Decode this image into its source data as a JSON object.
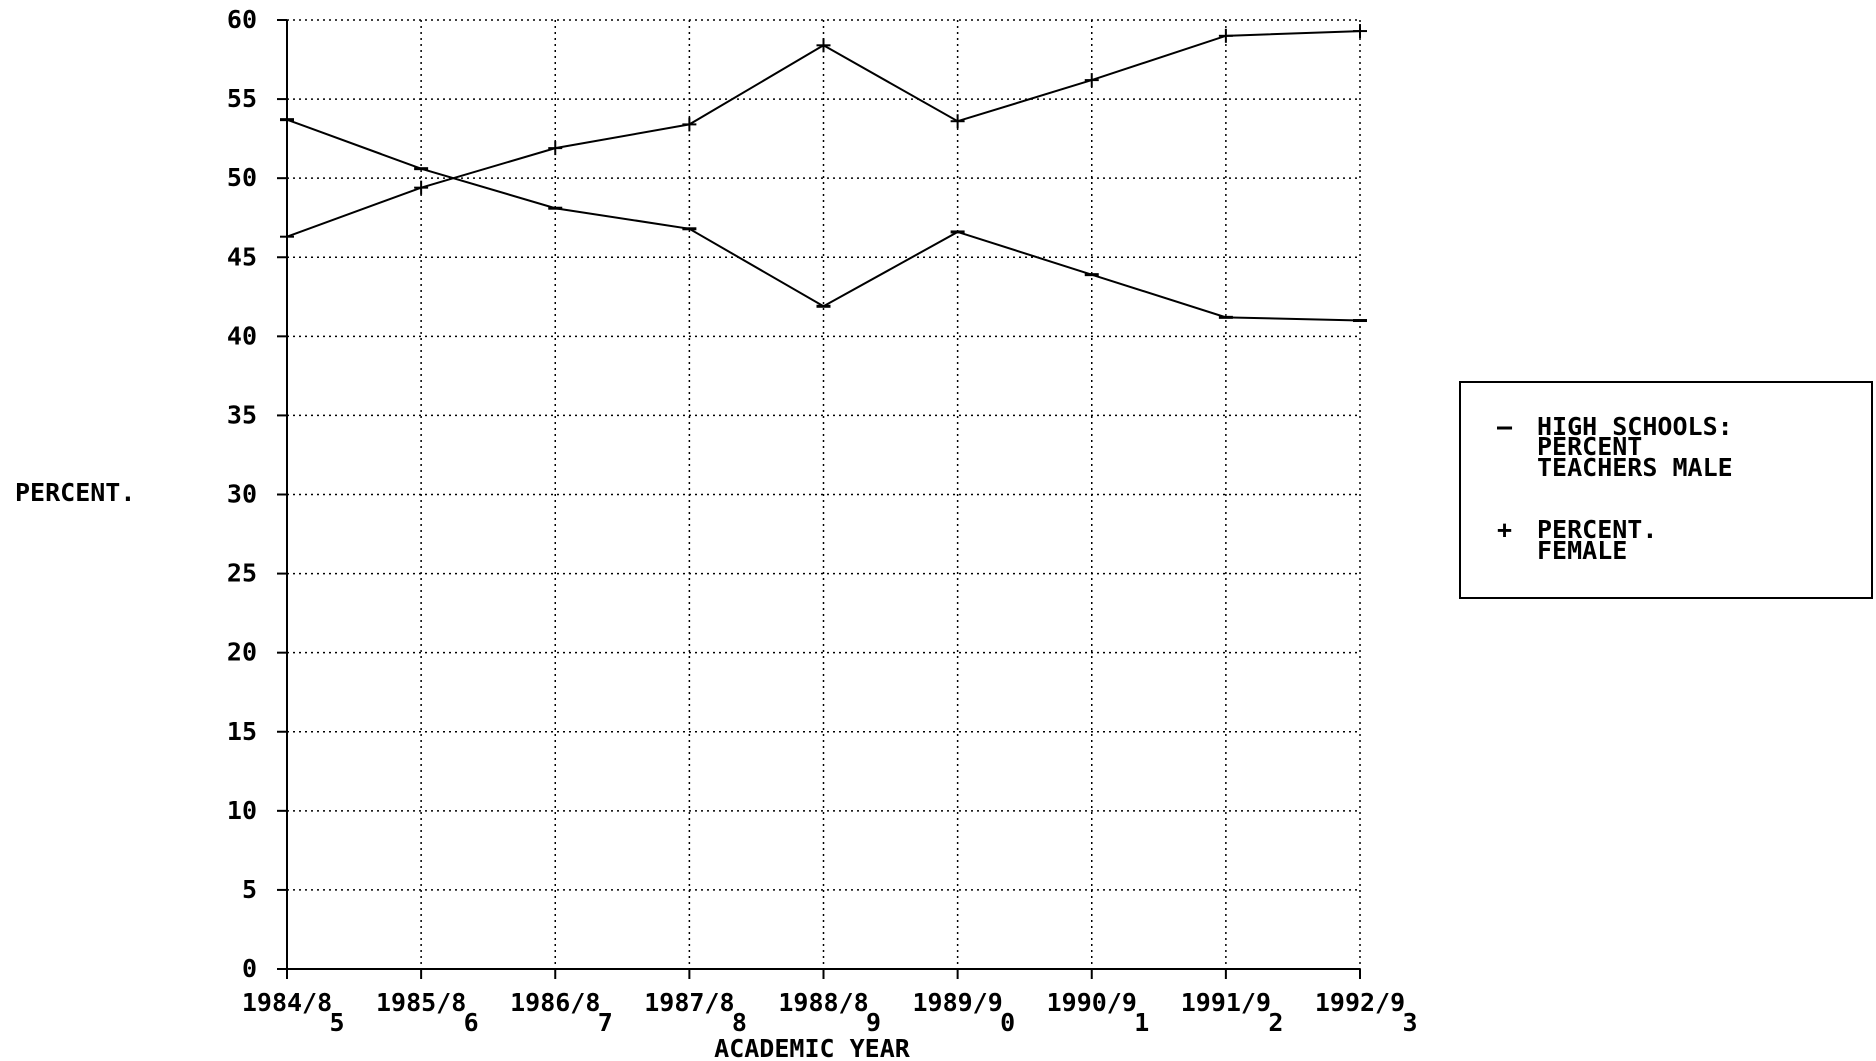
{
  "chart_data": {
    "type": "line",
    "title": "",
    "xlabel": "ACADEMIC YEAR",
    "ylabel": "PERCENT.",
    "ylim": [
      0,
      60
    ],
    "y_ticks": [
      0,
      5,
      10,
      15,
      20,
      25,
      30,
      35,
      40,
      45,
      50,
      55,
      60
    ],
    "y_tick_labels": [
      "0",
      "5",
      "10",
      "15",
      "20",
      "25",
      "30",
      "35",
      "40",
      "45",
      "50",
      "55",
      "60"
    ],
    "grid": true,
    "grid_style": "dotted",
    "legend_position": "right",
    "categories": [
      {
        "line1": "1984/8",
        "line2": "5"
      },
      {
        "line1": "1985/8",
        "line2": "6"
      },
      {
        "line1": "1986/8",
        "line2": "7"
      },
      {
        "line1": "1987/8",
        "line2": "8"
      },
      {
        "line1": "1988/8",
        "line2": "9"
      },
      {
        "line1": "1989/9",
        "line2": "0"
      },
      {
        "line1": "1990/9",
        "line2": "1"
      },
      {
        "line1": "1991/9",
        "line2": "2"
      },
      {
        "line1": "1992/9",
        "line2": "3"
      }
    ],
    "series": [
      {
        "name_lines": [
          "HIGH SCHOOLS:",
          "PERCENT",
          "TEACHERS MALE"
        ],
        "marker": "dash",
        "legend_symbol": "—",
        "color": "#000000",
        "values": [
          53.7,
          50.6,
          48.1,
          46.8,
          41.9,
          46.6,
          43.9,
          41.2,
          41.0
        ]
      },
      {
        "name_lines": [
          "PERCENT.",
          "FEMALE"
        ],
        "marker": "plus",
        "legend_symbol": "+",
        "color": "#000000",
        "values": [
          46.3,
          49.4,
          51.9,
          53.4,
          58.4,
          53.6,
          56.2,
          59.0,
          59.3
        ]
      }
    ]
  }
}
